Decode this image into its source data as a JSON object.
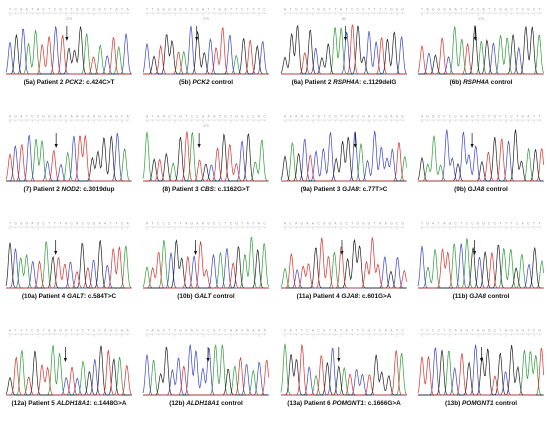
{
  "figure": {
    "panels": [
      {
        "id": "5a",
        "caption_prefix": "(5a) Patient 2 ",
        "gene": "PCK2",
        "caption_suffix": ": c.424C>T",
        "seed": 11,
        "tick_label": "270"
      },
      {
        "id": "5b",
        "caption_prefix": "(5b) ",
        "gene": "PCK2",
        "caption_suffix": " control",
        "seed": 23,
        "tick_label": "270"
      },
      {
        "id": "6a",
        "caption_prefix": "(6a) Patient 2 ",
        "gene": "RSPH4A",
        "caption_suffix": ": c.1129delG",
        "seed": 37,
        "tick_label": "80"
      },
      {
        "id": "6b",
        "caption_prefix": "(6b) ",
        "gene": "RSPH4A",
        "caption_suffix": " control",
        "seed": 41,
        "tick_label": "270"
      },
      {
        "id": "7",
        "caption_prefix": "(7) Patient 2 ",
        "gene": "NOD2",
        "caption_suffix": ": c.3019dup",
        "seed": 53,
        "tick_label": ""
      },
      {
        "id": "8",
        "caption_prefix": "(8) Patient 3 ",
        "gene": "CBS",
        "caption_suffix": ": c.1162G>T",
        "seed": 67,
        "tick_label": "270"
      },
      {
        "id": "9a",
        "caption_prefix": "(9a) Patient 3 ",
        "gene": "GJA8",
        "caption_suffix": ": c.77T>C",
        "seed": 71,
        "tick_label": ""
      },
      {
        "id": "9b",
        "caption_prefix": "(9b) ",
        "gene": "GJA8",
        "caption_suffix": " control",
        "seed": 83,
        "tick_label": ""
      },
      {
        "id": "10a",
        "caption_prefix": "(10a) Patient 4 ",
        "gene": "GALT",
        "caption_suffix": ": c.584T>C",
        "seed": 97,
        "tick_label": ""
      },
      {
        "id": "10b",
        "caption_prefix": "(10b) ",
        "gene": "GALT",
        "caption_suffix": " control",
        "seed": 101,
        "tick_label": ""
      },
      {
        "id": "11a",
        "caption_prefix": "(11a) Patient 4 ",
        "gene": "GJA8",
        "caption_suffix": ": c.601G>A",
        "seed": 113,
        "tick_label": ""
      },
      {
        "id": "11b",
        "caption_prefix": "(11b) ",
        "gene": "GJA8",
        "caption_suffix": " control",
        "seed": 127,
        "tick_label": ""
      },
      {
        "id": "12a",
        "caption_prefix": "(12a) Patient 5 ",
        "gene": "ALDH18A1",
        "caption_suffix": ": c.1448G>A",
        "seed": 131,
        "tick_label": ""
      },
      {
        "id": "12b",
        "caption_prefix": "(12b) ",
        "gene": "ALDH18A1",
        "caption_suffix": " control",
        "seed": 139,
        "tick_label": ""
      },
      {
        "id": "13a",
        "caption_prefix": "(13a) Patient 6 ",
        "gene": "POMGNT1",
        "caption_suffix": ": c.1666G>A",
        "seed": 149,
        "tick_label": ""
      },
      {
        "id": "13b",
        "caption_prefix": "(13b) ",
        "gene": "POMGNT1",
        "caption_suffix": " control",
        "seed": 157,
        "tick_label": ""
      }
    ],
    "trace_colors": {
      "A": "#2e9d3a",
      "C": "#3b46c8",
      "G": "#222222",
      "T": "#d8322e"
    },
    "arrow_color": "#111111"
  }
}
